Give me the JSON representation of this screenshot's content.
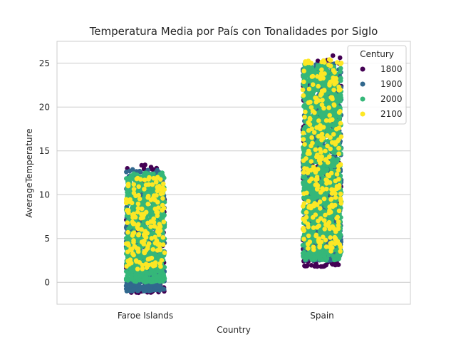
{
  "chart_data": {
    "type": "scatter",
    "subtype": "strip",
    "title": "Temperatura Media por País con Tonalidades por Siglo",
    "xlabel": "Country",
    "ylabel": "AverageTemperature",
    "categories": [
      "Faroe Islands",
      "Spain"
    ],
    "ylim": [
      -2.5,
      27.5
    ],
    "yticks": [
      0,
      5,
      10,
      15,
      20,
      25
    ],
    "grid": "horizontal",
    "legend": {
      "title": "Century",
      "placement": "top-right",
      "entries": [
        {
          "label": "1800",
          "color": "#440154"
        },
        {
          "label": "1900",
          "color": "#31688e"
        },
        {
          "label": "2000",
          "color": "#35b779"
        },
        {
          "label": "2100",
          "color": "#fde725"
        }
      ]
    },
    "series": [
      {
        "name": "1800",
        "color": "#440154",
        "ranges": [
          {
            "category": "Faroe Islands",
            "min": -1.2,
            "max": 13.5
          },
          {
            "category": "Spain",
            "min": 1.8,
            "max": 26.0
          }
        ]
      },
      {
        "name": "1900",
        "color": "#31688e",
        "ranges": [
          {
            "category": "Faroe Islands",
            "min": -1.0,
            "max": 12.9
          },
          {
            "category": "Spain",
            "min": 2.5,
            "max": 25.0
          }
        ]
      },
      {
        "name": "2000",
        "color": "#35b779",
        "ranges": [
          {
            "category": "Faroe Islands",
            "min": 0.0,
            "max": 12.5
          },
          {
            "category": "Spain",
            "min": 2.5,
            "max": 25.0
          }
        ]
      },
      {
        "name": "2100",
        "color": "#fde725",
        "ranges": [
          {
            "category": "Faroe Islands",
            "min": 1.5,
            "max": 12.0
          },
          {
            "category": "Spain",
            "min": 3.5,
            "max": 25.5
          }
        ]
      }
    ]
  }
}
